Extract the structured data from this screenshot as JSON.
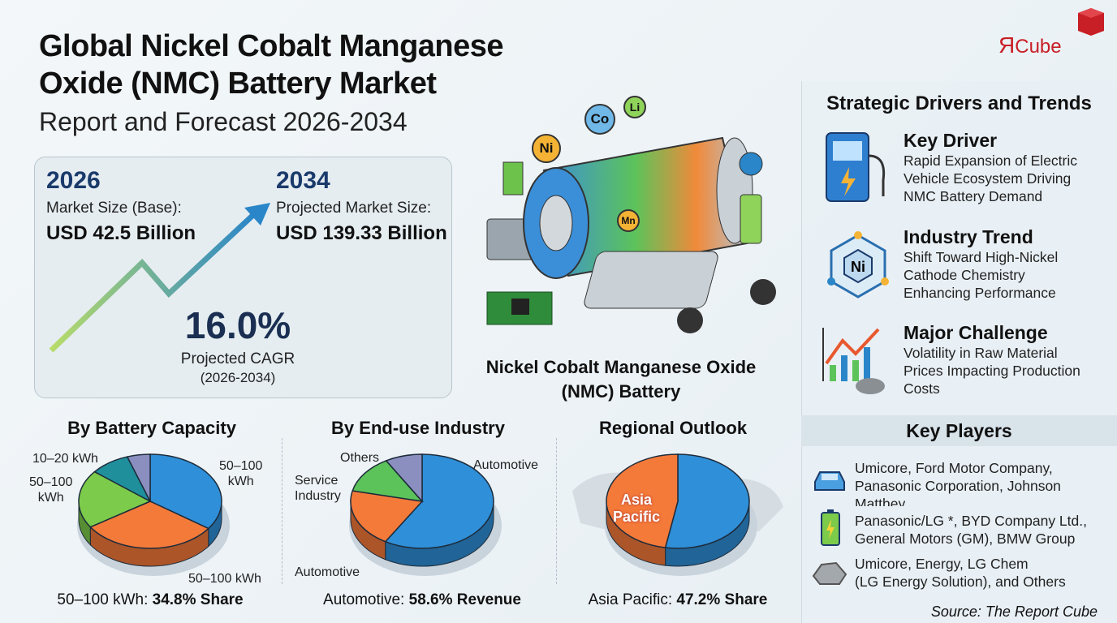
{
  "title": {
    "line1": "Global Nickel Cobalt Manganese",
    "line2": "Oxide (NMC) Battery Market",
    "line3": "Report and Forecast 2026-2034"
  },
  "logo": {
    "text": "ЯCube",
    "accent": "#d62027"
  },
  "summary": {
    "base_year": "2026",
    "base_label": "Market Size (Base):",
    "base_value": "USD 42.5 Billion",
    "forecast_year": "2034",
    "forecast_label": "Projected Market Size:",
    "forecast_value": "USD 139.33 Billion",
    "cagr": "16.0%",
    "cagr_label": "Projected CAGR",
    "cagr_period": "(2026-2034)"
  },
  "illustration": {
    "caption1": "Nickel Cobalt Manganese Oxide",
    "caption2": "(NMC) Battery",
    "elements": [
      "Ni",
      "Co",
      "Li",
      "Mn"
    ]
  },
  "drivers": {
    "heading": "Strategic Drivers and Trends",
    "items": [
      {
        "icon": "ev-charger-icon",
        "title": "Key Driver",
        "lines": [
          "Rapid Expansion of Electric",
          "Vehicle Ecosystem Driving",
          "NMC Battery Demand"
        ]
      },
      {
        "icon": "nickel-molecule-icon",
        "title": "Industry Trend",
        "lines": [
          "Shift Toward High-Nickel",
          "Cathode Chemistry",
          "Enhancing Performance"
        ]
      },
      {
        "icon": "price-chart-icon",
        "title": "Major Challenge",
        "lines": [
          "Volatility in Raw Material",
          "Prices Impacting Production",
          "Costs"
        ]
      }
    ]
  },
  "key_players": {
    "heading": "Key Players",
    "groups": [
      {
        "icon": "car-icon",
        "lines": [
          "Umicore, Ford Motor Company,",
          "Panasonic Corporation, Johnson",
          "Matthey"
        ]
      },
      {
        "icon": "battery-icon",
        "lines": [
          "Panasonic/LG *, BYD Company Ltd.,",
          "General Motors (GM), BMW Group"
        ]
      },
      {
        "icon": "ore-rock-icon",
        "lines": [
          "Umicore, Energy, LG Chem",
          "(LG Energy Solution), and Others"
        ]
      }
    ],
    "source": "Source: The Report Cube"
  },
  "segments": [
    {
      "title": "By Battery Capacity",
      "labels": [
        "10–20 kWh",
        "50–100\nkWh",
        "50–100\nkWh",
        "50–100 kWh"
      ],
      "footer_prefix": "50–100 kWh: ",
      "footer_value": "34.8% Share",
      "slices": [
        {
          "value": 34.8,
          "color": "#2f8fd8"
        },
        {
          "value": 31,
          "color": "#f47a3a"
        },
        {
          "value": 20,
          "color": "#7ccb4a"
        },
        {
          "value": 9,
          "color": "#1f8f9c"
        },
        {
          "value": 5.2,
          "color": "#8a8fc0"
        }
      ]
    },
    {
      "title": "By End-use Industry",
      "labels": [
        "Others",
        "Service\nIndustry",
        "Automotive",
        "Automotive"
      ],
      "footer_prefix": "Automotive: ",
      "footer_value": "58.6% Revenue",
      "slices": [
        {
          "value": 58.6,
          "color": "#2f8fd8"
        },
        {
          "value": 20,
          "color": "#f47a3a"
        },
        {
          "value": 13,
          "color": "#5cc35a"
        },
        {
          "value": 8.4,
          "color": "#8a8fc0"
        }
      ]
    },
    {
      "title": "Regional Outlook",
      "labels": [
        "Asia\nPacific"
      ],
      "footer_prefix": "Asia Pacific: ",
      "footer_value": "47.2% Share",
      "slices": [
        {
          "value": 52.8,
          "color": "#2f8fd8"
        },
        {
          "value": 47.2,
          "color": "#f47a3a"
        }
      ]
    }
  ]
}
